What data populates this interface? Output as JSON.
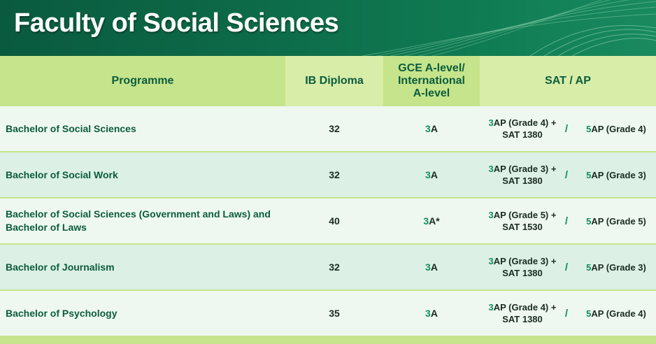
{
  "banner": {
    "title": "Faculty of Social Sciences"
  },
  "colors": {
    "banner_green": "#0d6b49",
    "header_green": "#c6e48b",
    "text_green": "#0b5c3e",
    "accent_green": "#0e8f5a"
  },
  "table": {
    "headers": {
      "programme": "Programme",
      "ib": "IB Diploma",
      "gce_line1": "GCE A-level/",
      "gce_line2": "International",
      "gce_line3": "A-level",
      "sat": "SAT / AP"
    },
    "rows": [
      {
        "programme": "Bachelor of Social Sciences",
        "ib": "32",
        "gce_num": "3",
        "gce_grade": "A",
        "sat_ap_num": "3",
        "sat_ap_grade": "AP (Grade 4) +",
        "sat_score": "SAT 1380",
        "alt_num": "5",
        "alt_grade": "AP (Grade 4)"
      },
      {
        "programme": "Bachelor of Social Work",
        "ib": "32",
        "gce_num": "3",
        "gce_grade": "A",
        "sat_ap_num": "3",
        "sat_ap_grade": "AP (Grade 3) +",
        "sat_score": "SAT 1380",
        "alt_num": "5",
        "alt_grade": "AP (Grade 3)"
      },
      {
        "programme_line1": "Bachelor of Social Sciences (Government and Laws) and",
        "programme_line2": "Bachelor of Laws",
        "ib": "40",
        "gce_num": "3",
        "gce_grade": "A*",
        "sat_ap_num": "3",
        "sat_ap_grade": "AP (Grade 5) +",
        "sat_score": "SAT 1530",
        "alt_num": "5",
        "alt_grade": "AP (Grade 5)"
      },
      {
        "programme": "Bachelor of Journalism",
        "ib": "32",
        "gce_num": "3",
        "gce_grade": "A",
        "sat_ap_num": "3",
        "sat_ap_grade": "AP (Grade 3) +",
        "sat_score": "SAT 1380",
        "alt_num": "5",
        "alt_grade": "AP (Grade 3)"
      },
      {
        "programme": "Bachelor of Psychology",
        "ib": "35",
        "gce_num": "3",
        "gce_grade": "A",
        "sat_ap_num": "3",
        "sat_ap_grade": "AP (Grade 4) +",
        "sat_score": "SAT 1380",
        "alt_num": "5",
        "alt_grade": "AP (Grade 4)"
      }
    ],
    "separator": "/"
  }
}
